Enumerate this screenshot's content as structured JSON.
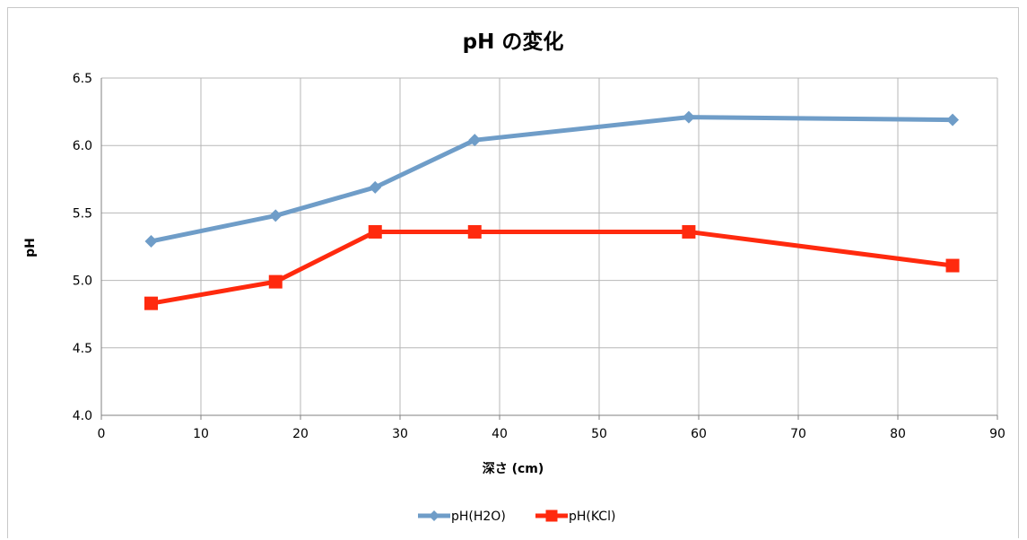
{
  "chart_data": {
    "type": "line",
    "title": "pH の変化",
    "xlabel": "深さ (cm)",
    "ylabel": "pH",
    "xlim": [
      0,
      90
    ],
    "ylim": [
      4.0,
      6.5
    ],
    "x_ticks": [
      "0",
      "10",
      "20",
      "30",
      "40",
      "50",
      "60",
      "70",
      "80",
      "90"
    ],
    "y_ticks": [
      "4.0",
      "4.5",
      "5.0",
      "5.5",
      "6.0",
      "6.5"
    ],
    "grid": true,
    "legend_position": "bottom",
    "series": [
      {
        "name": "pH(H2O)",
        "color": "#6f9dc8",
        "marker": "diamond",
        "x": [
          5,
          17.5,
          27.5,
          37.5,
          59,
          85.5
        ],
        "y": [
          5.29,
          5.48,
          5.69,
          6.04,
          6.21,
          6.19
        ]
      },
      {
        "name": "pH(KCl)",
        "color": "#ff2a0e",
        "marker": "square",
        "x": [
          5,
          17.5,
          27.5,
          37.5,
          59,
          85.5
        ],
        "y": [
          4.83,
          4.99,
          5.36,
          5.36,
          5.36,
          5.11
        ]
      }
    ]
  }
}
